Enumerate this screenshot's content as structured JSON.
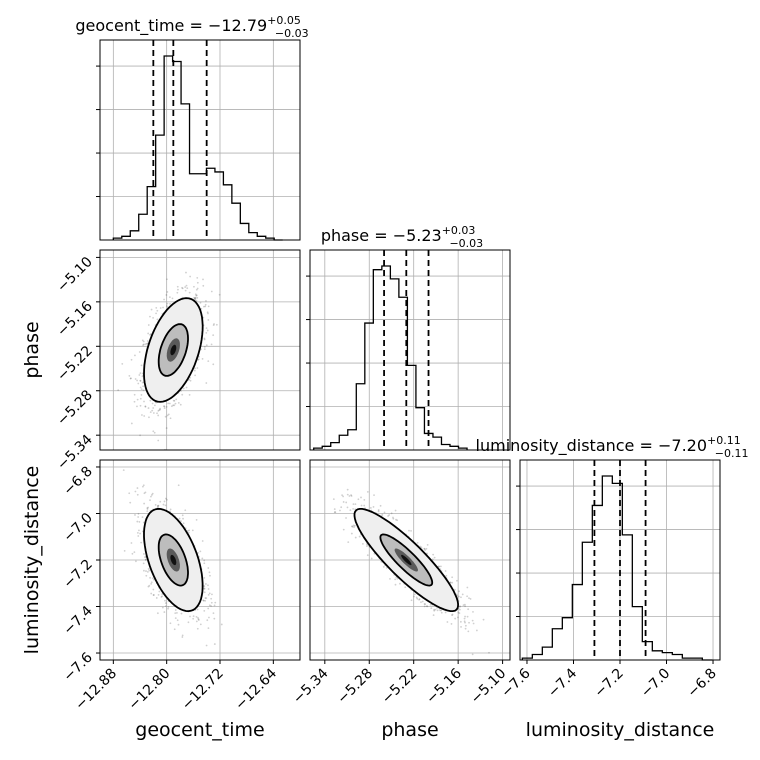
{
  "chart_data": {
    "type": "corner",
    "params": [
      {
        "name": "geocent_time",
        "axis_label": "geocent_time",
        "title_main": "geocent_time = −12.79",
        "title_sup": "+0.05",
        "title_sub": "−0.03",
        "lim": [
          -12.9,
          -12.6
        ],
        "ticks": [
          -12.88,
          -12.8,
          -12.72,
          -12.64
        ],
        "tick_labels": [
          "−12.88",
          "−12.80",
          "−12.72",
          "−12.64"
        ],
        "quantiles": [
          -12.82,
          -12.79,
          -12.74
        ]
      },
      {
        "name": "phase",
        "axis_label": "phase",
        "title_main": "phase = −5.23",
        "title_sup": "+0.03",
        "title_sub": "−0.03",
        "lim": [
          -5.36,
          -5.09
        ],
        "ticks": [
          -5.34,
          -5.28,
          -5.22,
          -5.16,
          -5.1
        ],
        "tick_labels": [
          "−5.34",
          "−5.28",
          "−5.22",
          "−5.16",
          "−5.10"
        ],
        "quantiles": [
          -5.26,
          -5.23,
          -5.2
        ]
      },
      {
        "name": "luminosity_distance",
        "axis_label": "luminosity_distance",
        "title_main": "luminosity_distance = −7.20",
        "title_sup": "+0.11",
        "title_sub": "−0.11",
        "lim": [
          -7.63,
          -6.77
        ],
        "ticks": [
          -7.6,
          -7.4,
          -7.2,
          -7.0,
          -6.8
        ],
        "tick_labels": [
          "−7.6",
          "−7.4",
          "−7.2",
          "−7.0",
          "−6.8"
        ],
        "quantiles": [
          -7.31,
          -7.2,
          -7.09
        ]
      }
    ],
    "histograms": [
      {
        "param": "geocent_time",
        "edges_from": -12.88,
        "bin_width": 0.0127,
        "counts": [
          0.01,
          0.02,
          0.05,
          0.14,
          0.29,
          0.57,
          1.0,
          0.97,
          0.74,
          0.36,
          0.36,
          0.39,
          0.37,
          0.3,
          0.2,
          0.09,
          0.04,
          0.02,
          0.01,
          0.0
        ]
      },
      {
        "param": "phase",
        "edges_from": -5.355,
        "bin_width": 0.0115,
        "counts": [
          0.01,
          0.02,
          0.04,
          0.08,
          0.11,
          0.36,
          0.69,
          0.98,
          1.0,
          0.93,
          0.83,
          0.46,
          0.23,
          0.09,
          0.07,
          0.03,
          0.02,
          0.01
        ]
      },
      {
        "param": "luminosity_distance",
        "edges_from": -7.62,
        "bin_width": 0.043,
        "counts": [
          0.01,
          0.03,
          0.07,
          0.17,
          0.23,
          0.41,
          0.64,
          0.84,
          1.0,
          0.96,
          0.68,
          0.29,
          0.1,
          0.05,
          0.04,
          0.03,
          0.01,
          0.01,
          0.0
        ]
      }
    ],
    "pairs": [
      {
        "x": "geocent_time",
        "y": "phase",
        "center": [
          -12.79,
          -5.225
        ],
        "sd": [
          0.022,
          0.035
        ],
        "corr": 0.45
      },
      {
        "x": "geocent_time",
        "y": "luminosity_distance",
        "center": [
          -12.79,
          -7.2
        ],
        "sd": [
          0.022,
          0.11
        ],
        "corr": -0.5
      },
      {
        "x": "phase",
        "y": "luminosity_distance",
        "center": [
          -5.23,
          -7.2
        ],
        "sd": [
          0.035,
          0.11
        ],
        "corr": -0.88
      }
    ],
    "contour_levels": [
      "39%",
      "86%"
    ],
    "grid": true
  }
}
